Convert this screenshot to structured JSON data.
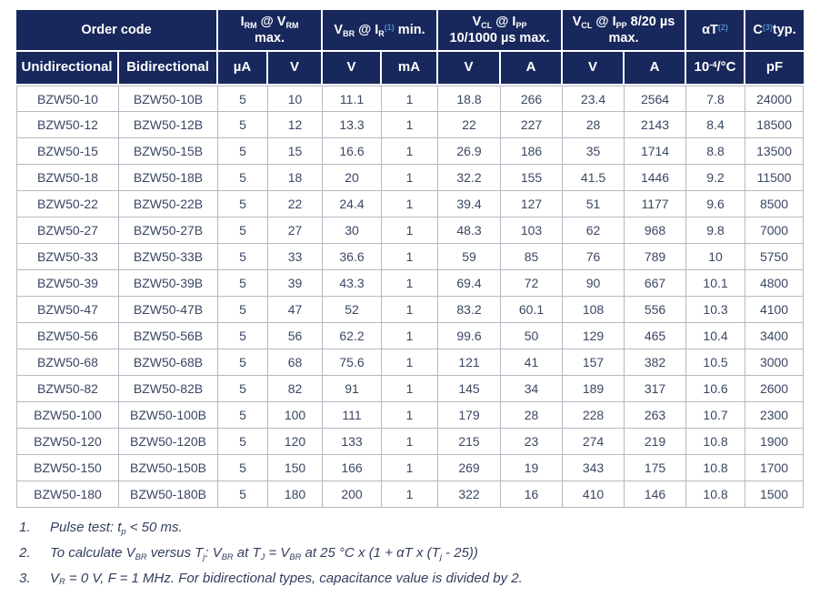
{
  "table": {
    "column_keys": [
      "order-code-unidirectional",
      "order-code-bidirectional",
      "irm-value",
      "vrm-value",
      "vbr-value",
      "ir-value",
      "vcl-10-1000-value",
      "ipp-10-1000-value",
      "vcl-8-20-value",
      "ipp-8-20-value",
      "alpha-t-value",
      "capacitance-value"
    ],
    "headers": {
      "order_code": "Order code",
      "irm_vrm": [
        {
          "t": "I"
        },
        {
          "t": "RM",
          "s": "sub"
        },
        {
          "t": " @ V"
        },
        {
          "t": "RM",
          "s": "sub"
        },
        {
          "s": "br"
        },
        {
          "t": "max."
        }
      ],
      "vbr_ir": [
        {
          "t": "V"
        },
        {
          "t": "BR",
          "s": "sub"
        },
        {
          "t": " @ I"
        },
        {
          "t": "R",
          "s": "sub"
        },
        {
          "t": "(1)",
          "s": "note"
        },
        {
          "t": " min."
        }
      ],
      "vcl_10_1000": [
        {
          "t": "V"
        },
        {
          "t": "CL",
          "s": "sub"
        },
        {
          "t": " @ I"
        },
        {
          "t": "PP",
          "s": "sub"
        },
        {
          "s": "br"
        },
        {
          "t": "10/1000 µs max."
        }
      ],
      "vcl_8_20": [
        {
          "t": "V"
        },
        {
          "t": "CL",
          "s": "sub"
        },
        {
          "t": " @ I"
        },
        {
          "t": "PP",
          "s": "sub"
        },
        {
          "t": " 8/20 µs",
          "s": ""
        },
        {
          "s": "br"
        },
        {
          "t": "max."
        }
      ],
      "alpha_t": [
        {
          "t": "αT"
        },
        {
          "t": "(2)",
          "s": "note"
        }
      ],
      "cap_typ": [
        {
          "t": "C"
        },
        {
          "t": "(3)",
          "s": "note"
        },
        {
          "t": "typ."
        }
      ]
    },
    "units": {
      "unidirectional": "Unidirectional",
      "bidirectional": "Bidirectional",
      "ua": "µA",
      "v1": "V",
      "v2": "V",
      "ma": "mA",
      "v3": "V",
      "a1": "A",
      "v4": "V",
      "a2": "A",
      "per_c": [
        {
          "t": "10"
        },
        {
          "t": "-4",
          "s": "sup"
        },
        {
          "t": "/°C"
        }
      ],
      "pf": "pF"
    },
    "rows": [
      [
        "BZW50-10",
        "BZW50-10B",
        "5",
        "10",
        "11.1",
        "1",
        "18.8",
        "266",
        "23.4",
        "2564",
        "7.8",
        "24000"
      ],
      [
        "BZW50-12",
        "BZW50-12B",
        "5",
        "12",
        "13.3",
        "1",
        "22",
        "227",
        "28",
        "2143",
        "8.4",
        "18500"
      ],
      [
        "BZW50-15",
        "BZW50-15B",
        "5",
        "15",
        "16.6",
        "1",
        "26.9",
        "186",
        "35",
        "1714",
        "8.8",
        "13500"
      ],
      [
        "BZW50-18",
        "BZW50-18B",
        "5",
        "18",
        "20",
        "1",
        "32.2",
        "155",
        "41.5",
        "1446",
        "9.2",
        "11500"
      ],
      [
        "BZW50-22",
        "BZW50-22B",
        "5",
        "22",
        "24.4",
        "1",
        "39.4",
        "127",
        "51",
        "1177",
        "9.6",
        "8500"
      ],
      [
        "BZW50-27",
        "BZW50-27B",
        "5",
        "27",
        "30",
        "1",
        "48.3",
        "103",
        "62",
        "968",
        "9.8",
        "7000"
      ],
      [
        "BZW50-33",
        "BZW50-33B",
        "5",
        "33",
        "36.6",
        "1",
        "59",
        "85",
        "76",
        "789",
        "10",
        "5750"
      ],
      [
        "BZW50-39",
        "BZW50-39B",
        "5",
        "39",
        "43.3",
        "1",
        "69.4",
        "72",
        "90",
        "667",
        "10.1",
        "4800"
      ],
      [
        "BZW50-47",
        "BZW50-47B",
        "5",
        "47",
        "52",
        "1",
        "83.2",
        "60.1",
        "108",
        "556",
        "10.3",
        "4100"
      ],
      [
        "BZW50-56",
        "BZW50-56B",
        "5",
        "56",
        "62.2",
        "1",
        "99.6",
        "50",
        "129",
        "465",
        "10.4",
        "3400"
      ],
      [
        "BZW50-68",
        "BZW50-68B",
        "5",
        "68",
        "75.6",
        "1",
        "121",
        "41",
        "157",
        "382",
        "10.5",
        "3000"
      ],
      [
        "BZW50-82",
        "BZW50-82B",
        "5",
        "82",
        "91",
        "1",
        "145",
        "34",
        "189",
        "317",
        "10.6",
        "2600"
      ],
      [
        "BZW50-100",
        "BZW50-100B",
        "5",
        "100",
        "111",
        "1",
        "179",
        "28",
        "228",
        "263",
        "10.7",
        "2300"
      ],
      [
        "BZW50-120",
        "BZW50-120B",
        "5",
        "120",
        "133",
        "1",
        "215",
        "23",
        "274",
        "219",
        "10.8",
        "1900"
      ],
      [
        "BZW50-150",
        "BZW50-150B",
        "5",
        "150",
        "166",
        "1",
        "269",
        "19",
        "343",
        "175",
        "10.8",
        "1700"
      ],
      [
        "BZW50-180",
        "BZW50-180B",
        "5",
        "180",
        "200",
        "1",
        "322",
        "16",
        "410",
        "146",
        "10.8",
        "1500"
      ]
    ]
  },
  "footnotes": [
    {
      "num": "1.",
      "segments": [
        {
          "t": "Pulse test: t"
        },
        {
          "t": "p",
          "s": "sub"
        },
        {
          "t": " < 50 ms."
        }
      ]
    },
    {
      "num": "2.",
      "segments": [
        {
          "t": "To calculate V"
        },
        {
          "t": "BR",
          "s": "sub"
        },
        {
          "t": " versus T"
        },
        {
          "t": "j",
          "s": "sub"
        },
        {
          "t": ": V"
        },
        {
          "t": "BR",
          "s": "sub"
        },
        {
          "t": " at T"
        },
        {
          "t": "J",
          "s": "sub"
        },
        {
          "t": " = V"
        },
        {
          "t": "BR",
          "s": "sub"
        },
        {
          "t": " at 25 °C x (1 + αT x (T"
        },
        {
          "t": "j",
          "s": "sub"
        },
        {
          "t": " - 25))"
        }
      ]
    },
    {
      "num": "3.",
      "segments": [
        {
          "t": "V"
        },
        {
          "t": "R",
          "s": "sub"
        },
        {
          "t": " = 0 V, F = 1 MHz. For bidirectional types, capacitance value is divided by 2."
        }
      ]
    }
  ],
  "colors": {
    "header_bg": "#18285c",
    "header_text": "#ffffff",
    "note_superscript": "#4a8ac4",
    "body_text": "#3a4763",
    "grid_line": "#b4bac3"
  }
}
